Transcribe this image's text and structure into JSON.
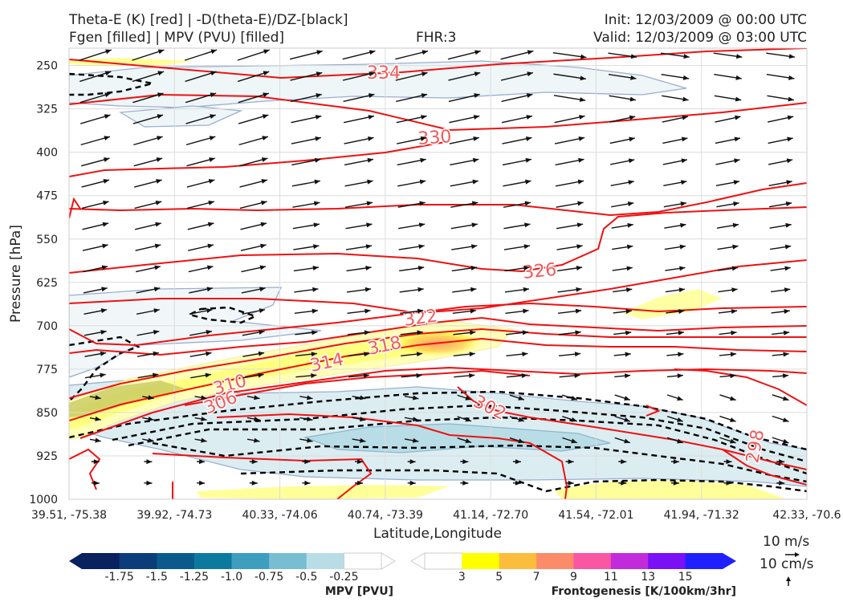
{
  "header": {
    "line1_left": "Theta-E (K) [red] | -D(theta-E)/DZ-[black]",
    "line2_left": "Fgen [filled] | MPV (PVU) [filled]",
    "fhr": "FHR:3",
    "init": "Init: 12/03/2009 @ 00:00 UTC",
    "valid": "Valid: 12/03/2009 @ 03:00 UTC"
  },
  "chart_data": {
    "type": "cross-section",
    "xlabel": "Latitude,Longitude",
    "ylabel": "Pressure [hPa]",
    "x_ticks": [
      "39.51, -75.38",
      "39.92, -74.73",
      "40.33, -74.06",
      "40.74, -73.39",
      "41.14, -72.70",
      "41.54, -72.01",
      "41.94, -71.32",
      "42.33, -70.6"
    ],
    "y_ticks": [
      250,
      325,
      400,
      475,
      550,
      625,
      700,
      775,
      850,
      925,
      1000
    ],
    "ylim": [
      1000,
      220
    ],
    "y_inverted": true,
    "grid": true,
    "theta_e_contour_labels": [
      "334",
      "330",
      "326",
      "322",
      "318",
      "314",
      "310",
      "306",
      "302",
      "298"
    ],
    "colors": {
      "theta_e": "#ee1111",
      "dtheta_dz": "#000000",
      "theta_label": "#f25a5a",
      "wind": "#111111"
    },
    "wind_key": {
      "horizontal": "10 m/s",
      "vertical": "10 cm/s"
    },
    "mpv_colorbar": {
      "title": "MPV [PVU]",
      "ticks": [
        "-1.75",
        "-1.5",
        "-1.25",
        "-1.0",
        "-0.75",
        "-0.5",
        "-0.25"
      ],
      "colors": [
        "#08215f",
        "#0b3d7a",
        "#0b5a8c",
        "#0c7a9f",
        "#3d9ec0",
        "#78bdd2",
        "#b9dde6",
        "#ffffff"
      ]
    },
    "fgen_colorbar": {
      "title": "Frontogenesis [K/100km/3hr]",
      "ticks": [
        "3",
        "5",
        "7",
        "9",
        "11",
        "13",
        "15"
      ],
      "colors": [
        "#ffffff",
        "#ffff00",
        "#fdbd3c",
        "#fc8b6a",
        "#fb56a2",
        "#c22bdc",
        "#7a10f5",
        "#2020ff"
      ]
    }
  }
}
